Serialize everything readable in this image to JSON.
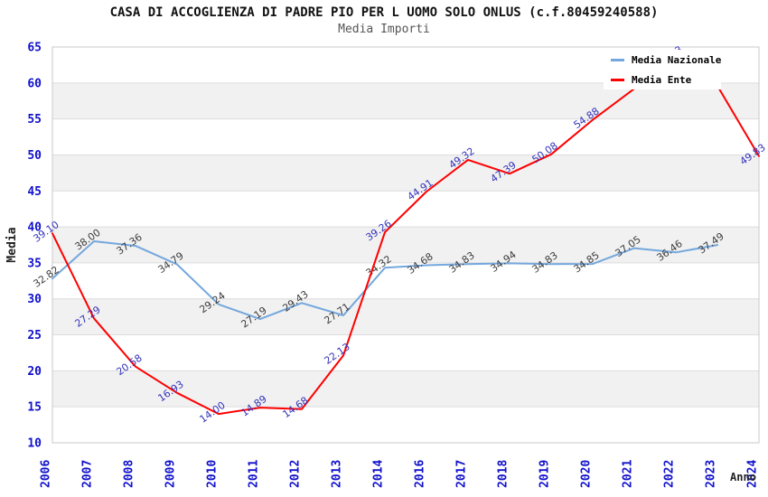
{
  "header": {
    "title": "CASA DI ACCOGLIENZA DI PADRE PIO PER L UOMO SOLO ONLUS (c.f.80459240588)",
    "subtitle": "Media Importi"
  },
  "legend": {
    "items": [
      {
        "label": "Media Nazionale",
        "color": "#74a7dd"
      },
      {
        "label": "Media Ente",
        "color": "#ff0000"
      }
    ]
  },
  "axes": {
    "y_title": "Media",
    "x_title": "Anno",
    "y_ticks": [
      "10",
      "15",
      "20",
      "25",
      "30",
      "35",
      "40",
      "45",
      "50",
      "55",
      "60",
      "65"
    ]
  },
  "chart_data": {
    "type": "line",
    "title": "CASA DI ACCOGLIENZA DI PADRE PIO PER L UOMO SOLO ONLUS (c.f.80459240588)",
    "subtitle": "Media Importi",
    "xlabel": "Anno",
    "ylabel": "Media",
    "ylim": [
      10,
      65
    ],
    "ytick_step": 5,
    "grid": "horizontal",
    "band_values": [
      15,
      25,
      35,
      45,
      55
    ],
    "band_color": "#f1f1f1",
    "gridline_color": "#dcdcdc",
    "border_color": "#c9c9c9",
    "tick_label_color": "#1111cc",
    "legend_position": "top-right",
    "categories": [
      "2006",
      "2007",
      "2008",
      "2009",
      "2010",
      "2011",
      "2012",
      "2013",
      "2014",
      "2016",
      "2017",
      "2018",
      "2019",
      "2020",
      "2021",
      "2022",
      "2023",
      "2024"
    ],
    "series": [
      {
        "name": "Media Nazionale",
        "color": "#74a7dd",
        "label_color": "#3d3d3d",
        "values": [
          32.82,
          38.0,
          37.36,
          34.79,
          29.24,
          27.19,
          29.43,
          27.71,
          34.32,
          34.68,
          34.83,
          34.94,
          34.83,
          34.85,
          37.05,
          36.46,
          37.49,
          null
        ],
        "labels": [
          "32.82",
          "38.00",
          "37.36",
          "34.79",
          "29.24",
          "27.19",
          "29.43",
          "27.71",
          "34.32",
          "34.68",
          "34.83",
          "34.94",
          "34.83",
          "34.85",
          "37.05",
          "36.46",
          "37.49",
          ""
        ]
      },
      {
        "name": "Media Ente",
        "color": "#ff0000",
        "label_color": "#3434bb",
        "values": [
          39.1,
          27.29,
          20.58,
          16.93,
          14.0,
          14.89,
          14.68,
          22.13,
          39.26,
          44.91,
          49.32,
          47.39,
          50.08,
          54.88,
          59.2,
          63.43,
          59.6,
          49.83
        ],
        "labels": [
          "39.10",
          "27.29",
          "20.58",
          "16.93",
          "14.00",
          "14.89",
          "14.68",
          "22.13",
          "39.26",
          "44.91",
          "49.32",
          "47.39",
          "50.08",
          "54.88",
          "",
          "63.43",
          "",
          "49.83"
        ]
      }
    ]
  }
}
